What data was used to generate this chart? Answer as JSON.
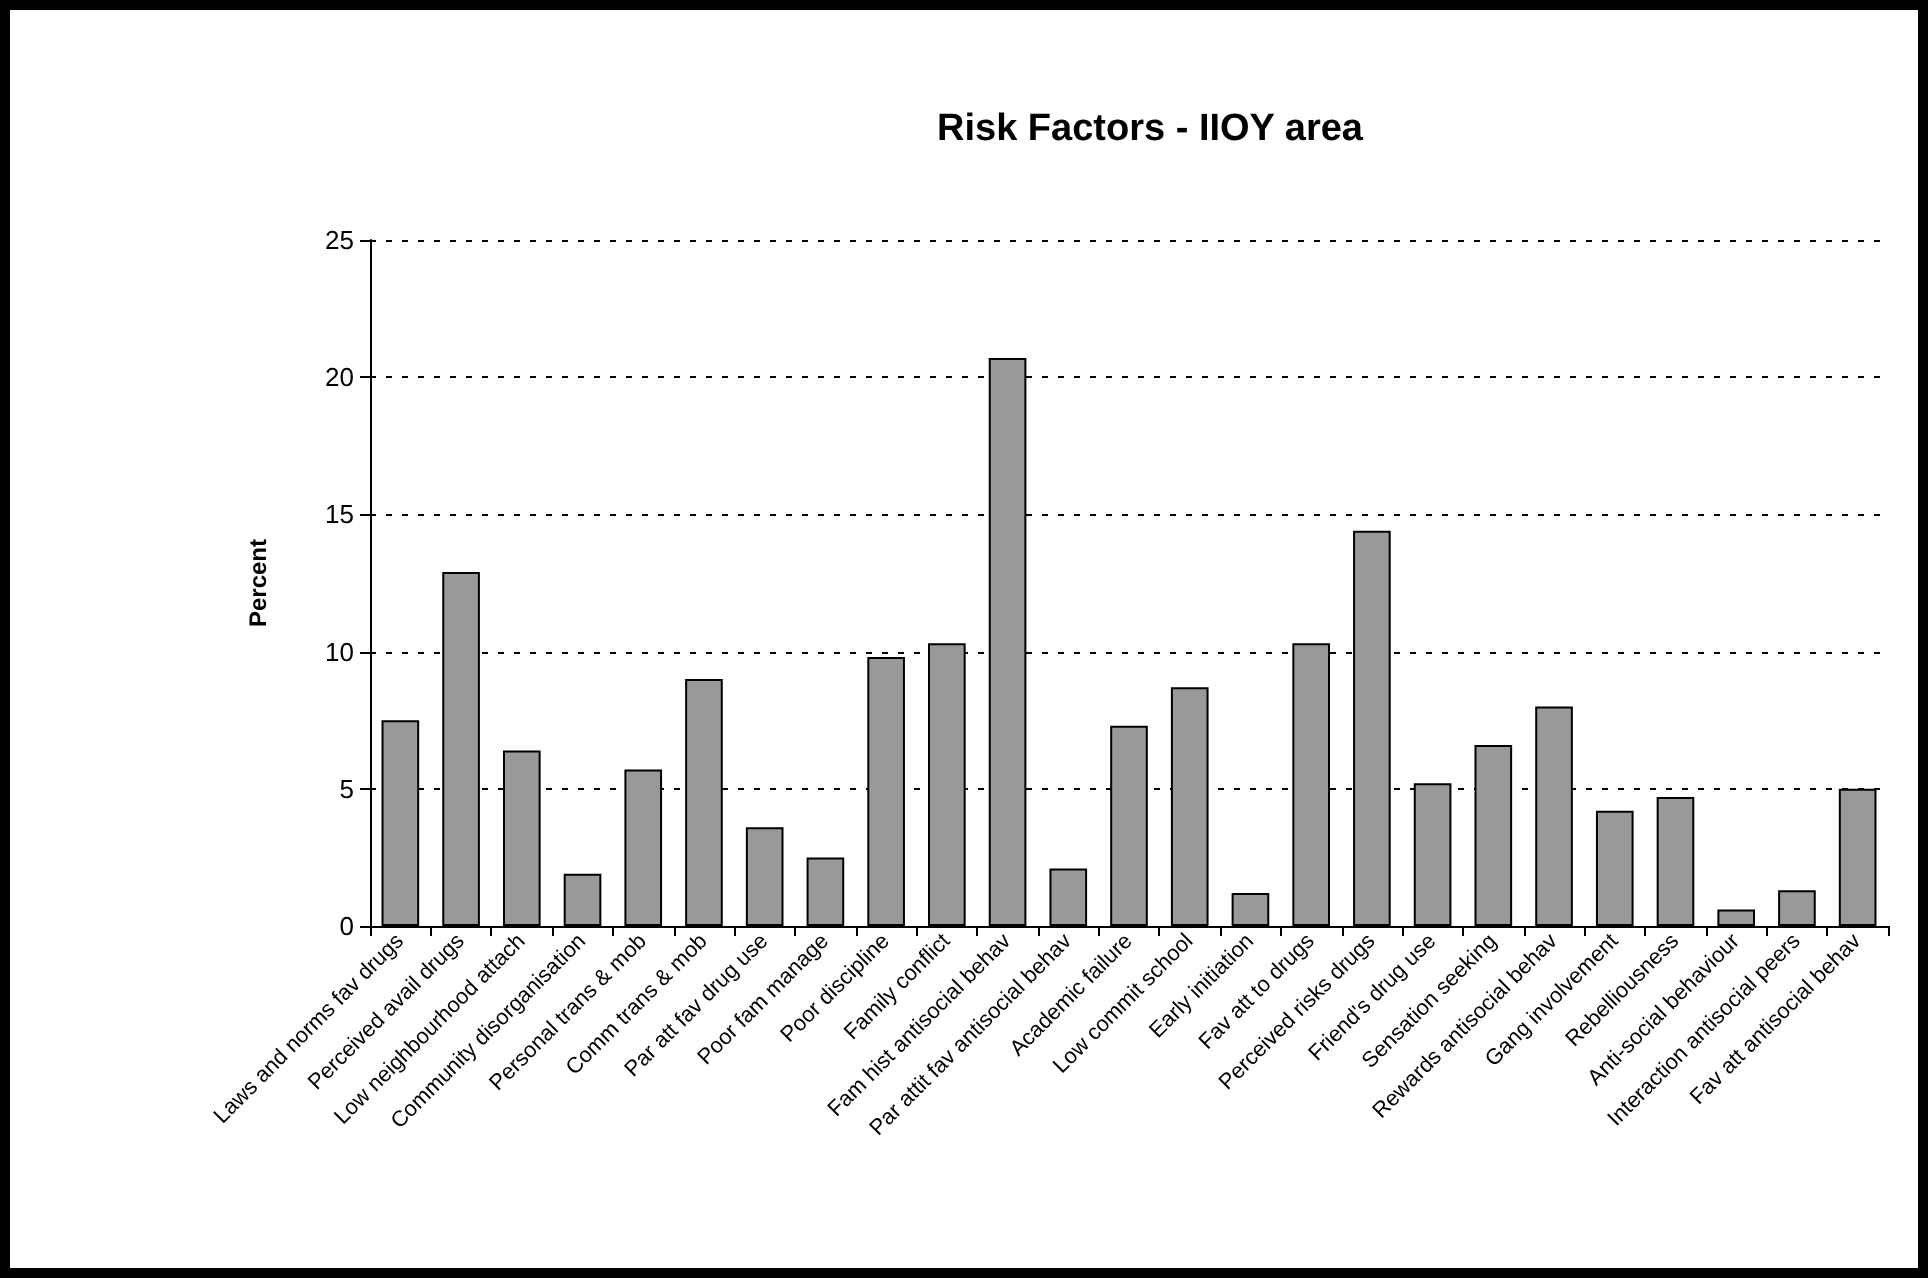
{
  "chart_data": {
    "type": "bar",
    "title": "Risk Factors - IIOY area",
    "ylabel": "Percent",
    "categories": [
      "Laws and norms fav drugs",
      "Perceived avail drugs",
      "Low neighbourhood attach",
      "Community disorganisation",
      "Personal trans & mob",
      "Comm trans & mob",
      "Par att fav drug use",
      "Poor fam manage",
      "Poor discipline",
      "Family conflict",
      "Fam hist antisocial behav",
      "Par attit fav antisocial behav",
      "Academic failure",
      "Low commit school",
      "Early initiation",
      "Fav att to drugs",
      "Perceived risks drugs",
      "Friend's drug use",
      "Sensation seeking",
      "Rewards antisocial behav",
      "Gang involvement",
      "Rebelliousness",
      "Anti-social behaviour",
      "Interaction antisocial peers",
      "Fav att antisocial behav"
    ],
    "values": [
      7.5,
      12.9,
      6.4,
      1.9,
      5.7,
      9.0,
      3.6,
      2.5,
      9.8,
      10.3,
      20.7,
      2.1,
      7.3,
      8.7,
      1.2,
      10.3,
      14.4,
      5.2,
      6.6,
      8.0,
      4.2,
      4.7,
      0.6,
      1.3,
      5.0
    ],
    "color": "#999999",
    "ylim": [
      0,
      25
    ],
    "yticks": [
      0,
      5,
      10,
      15,
      20,
      25
    ],
    "grid": "y"
  }
}
